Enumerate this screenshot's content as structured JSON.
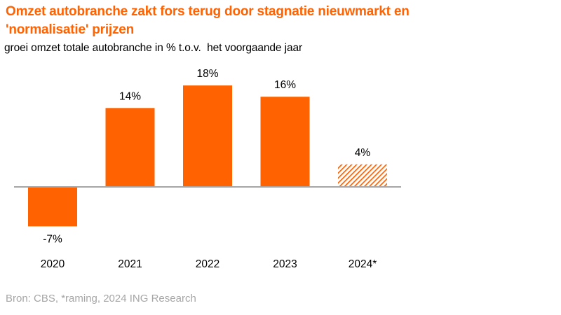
{
  "header": {
    "title": "Omzet autobranche zakt fors terug door stagnatie nieuwmarkt en 'normalisatie' prijzen",
    "subtitle": "groei omzet totale autobranche in % t.o.v.  het voorgaande jaar"
  },
  "footer": {
    "source": "Bron: CBS, *raming, 2024 ING Research"
  },
  "colors": {
    "accent": "#ff6200",
    "bar": "#ff6200",
    "axis": "#a6a6a6",
    "text": "#000000",
    "source": "#a6a6a6"
  },
  "chart_data": {
    "type": "bar",
    "categories": [
      "2020",
      "2021",
      "2022",
      "2023",
      "2024*"
    ],
    "values": [
      -7,
      14,
      18,
      16,
      4
    ],
    "data_labels": [
      "-7%",
      "14%",
      "18%",
      "16%",
      "4%"
    ],
    "estimated": [
      false,
      false,
      false,
      false,
      true
    ],
    "title": "Omzet autobranche zakt fors terug door stagnatie nieuwmarkt en 'normalisatie' prijzen",
    "subtitle": "groei omzet totale autobranche in % t.o.v.  het voorgaande jaar",
    "ylabel": "",
    "xlabel": "",
    "ylim": [
      -7,
      18
    ],
    "grid": false,
    "legend": "none"
  }
}
